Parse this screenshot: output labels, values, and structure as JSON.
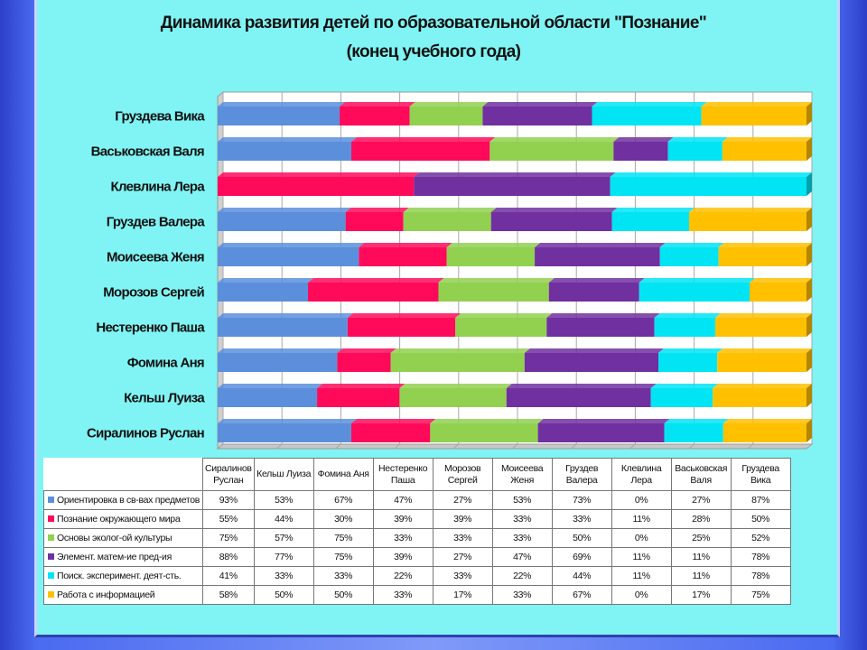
{
  "title_line1": "Динамика развития детей по образовательной области \"Познание\"",
  "title_line2": "(конец  учебного года)",
  "chart_data": {
    "type": "bar",
    "orientation": "horizontal",
    "stacked": "100%",
    "grid": true,
    "legend": "table-below",
    "title": "Динамика развития детей по образовательной области \"Познание\" (конец  учебного года)",
    "categories": [
      "Сиралинов Руслан",
      "Кельш Луиза",
      "Фомина Аня",
      "Нестеренко Паша",
      "Морозов Сергей",
      "Моисеева Женя",
      "Груздев Валера",
      "Клевлина Лера",
      "Васьковская Валя",
      "Груздева  Вика"
    ],
    "axis_labels": [
      "Сиралинов Руслан",
      "Кельш Луиза",
      "Фомина Аня",
      "Нестеренко Паша",
      "Морозов Сергей",
      "Моисеева Женя",
      "Груздев Валера",
      "Клевлина Лера",
      "Васьковская Валя",
      "Груздева  Вика"
    ],
    "series": [
      {
        "name": "Ориентировка в св-вах предметов",
        "color": "#5b8fdc",
        "values": [
          93,
          53,
          67,
          47,
          27,
          53,
          73,
          0,
          27,
          87
        ],
        "labels": [
          "93%",
          "53%",
          "67%",
          "47%",
          "27%",
          "53%",
          "73%",
          "0%",
          "27%",
          "87%"
        ]
      },
      {
        "name": "Познание окружающего  мира",
        "color": "#ff0a5a",
        "values": [
          55,
          44,
          30,
          39,
          39,
          33,
          33,
          11,
          28,
          50
        ],
        "labels": [
          "55%",
          "44%",
          "30%",
          "39%",
          "39%",
          "33%",
          "33%",
          "11%",
          "28%",
          "50%"
        ]
      },
      {
        "name": "Основы эколог-ой культуры",
        "color": "#92d050",
        "values": [
          75,
          57,
          75,
          33,
          33,
          33,
          50,
          0,
          25,
          52
        ],
        "labels": [
          "75%",
          "57%",
          "75%",
          "33%",
          "33%",
          "33%",
          "50%",
          "0%",
          "25%",
          "52%"
        ]
      },
      {
        "name": "Элемент. матем-ие пред-ия",
        "color": "#7030a0",
        "values": [
          88,
          77,
          75,
          39,
          27,
          47,
          69,
          11,
          11,
          78
        ],
        "labels": [
          "88%",
          "77%",
          "75%",
          "39%",
          "27%",
          "47%",
          "69%",
          "11%",
          "11%",
          "78%"
        ]
      },
      {
        "name": "Поиск. эксперимент. деят-сть.",
        "color": "#00e4f4",
        "values": [
          41,
          33,
          33,
          22,
          33,
          22,
          44,
          11,
          11,
          78
        ],
        "labels": [
          "41%",
          "33%",
          "33%",
          "22%",
          "33%",
          "22%",
          "44%",
          "11%",
          "11%",
          "78%"
        ]
      },
      {
        "name": "Работа с информацией",
        "color": "#ffc000",
        "values": [
          58,
          50,
          50,
          33,
          17,
          33,
          67,
          0,
          17,
          75
        ],
        "labels": [
          "58%",
          "50%",
          "50%",
          "33%",
          "17%",
          "33%",
          "67%",
          "0%",
          "17%",
          "75%"
        ]
      }
    ]
  }
}
